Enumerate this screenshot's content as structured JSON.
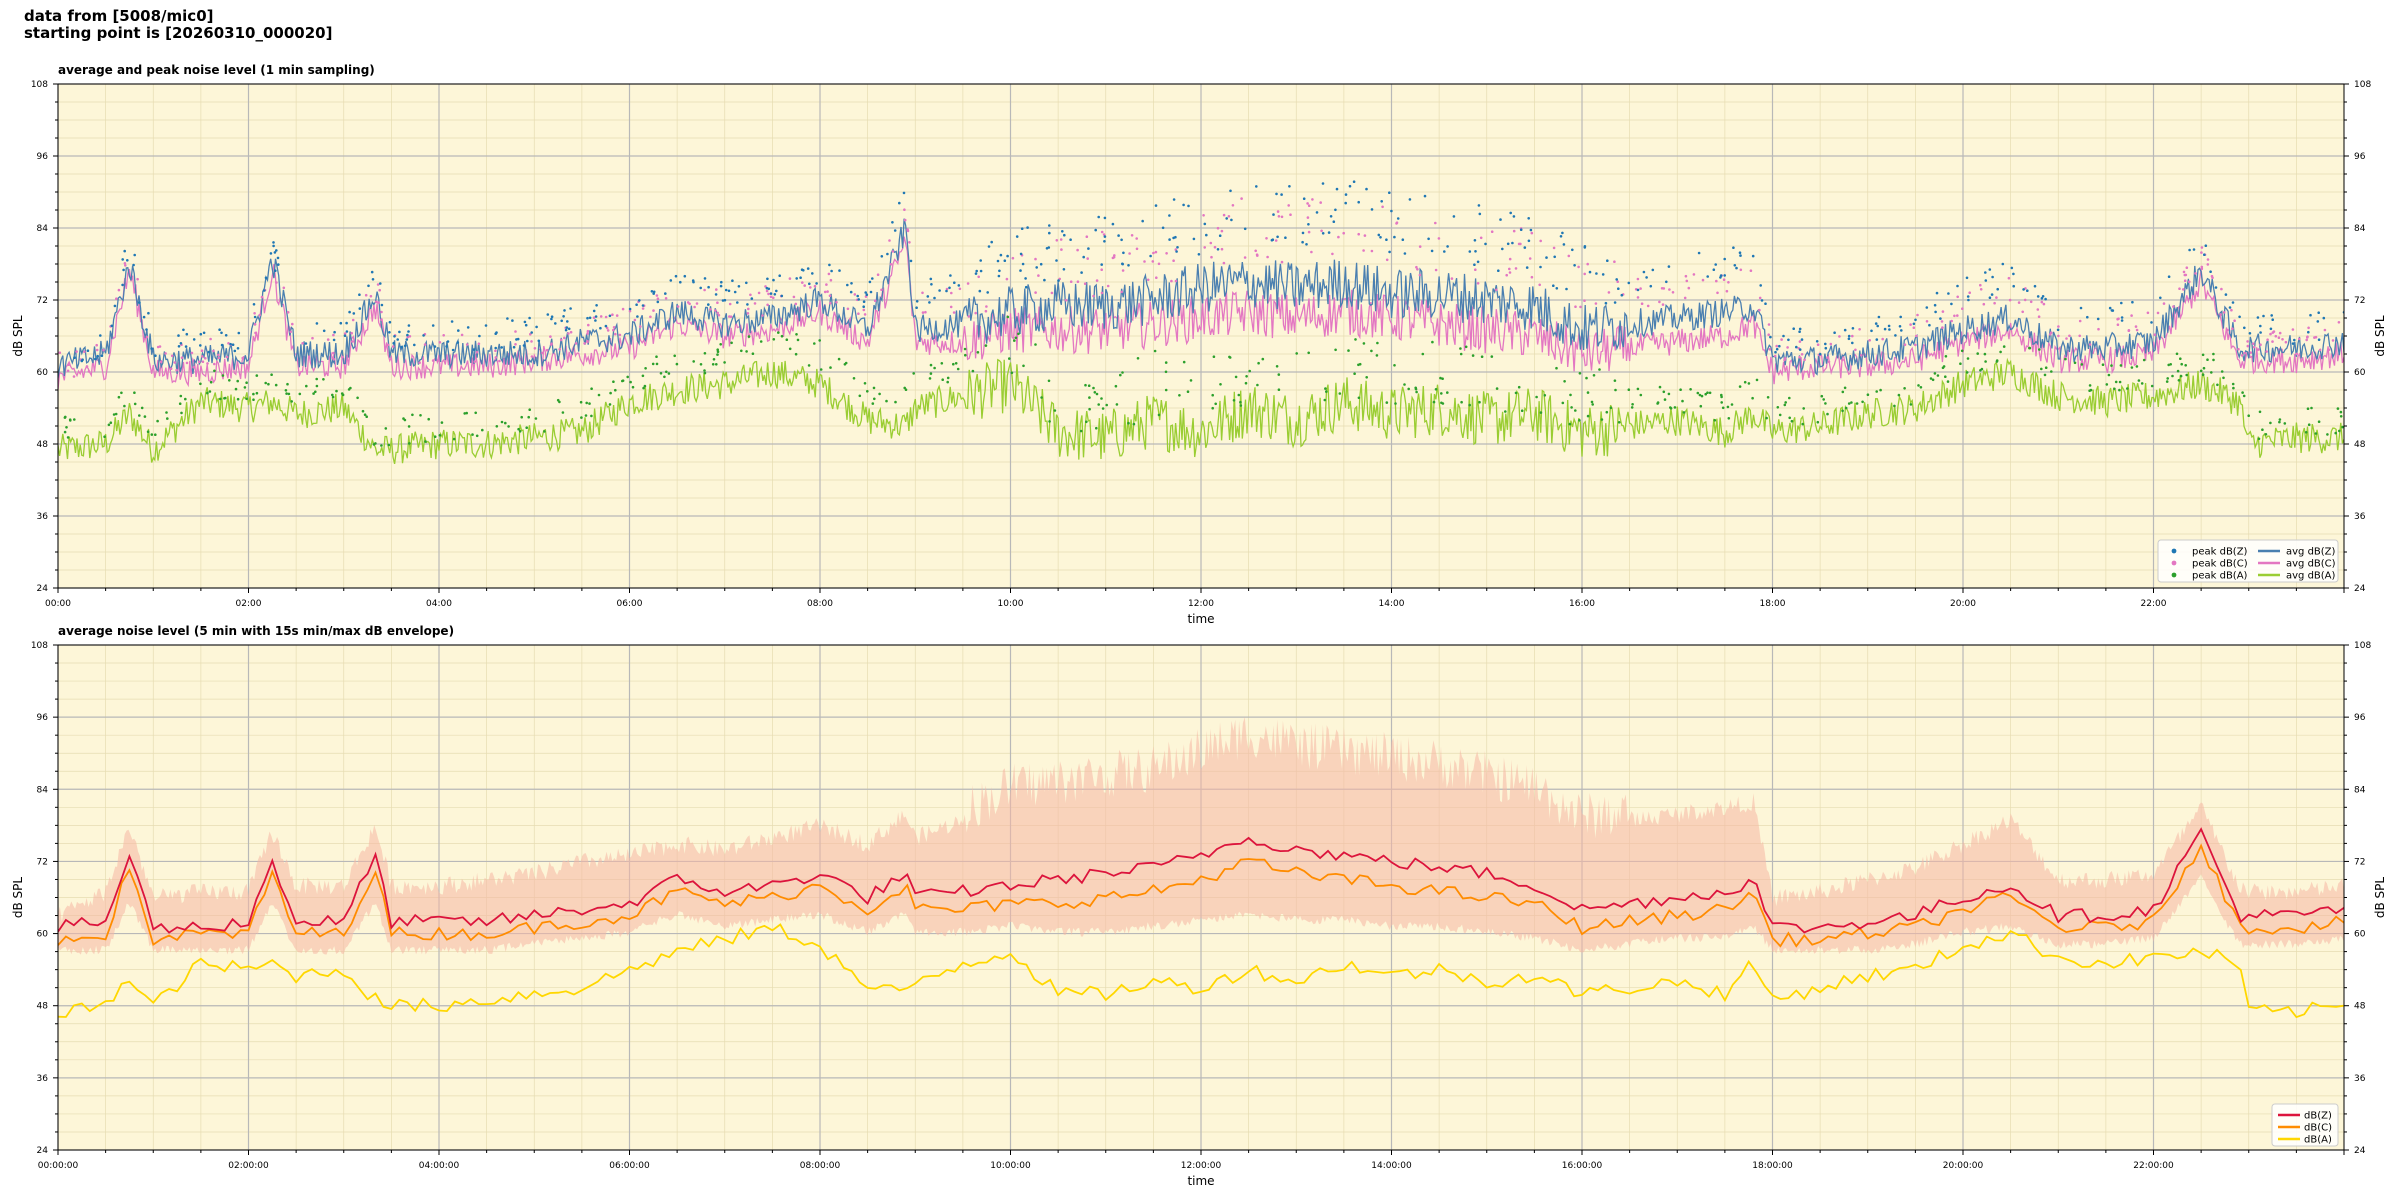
{
  "header": {
    "line1": "data from [5008/mic0]",
    "line2": "starting point is [20260310_000020]"
  },
  "colors": {
    "plot_bg": "#fdf6d8",
    "peak_z": "#1f77b4",
    "peak_c": "#e377c2",
    "peak_a": "#2ca02c",
    "avg_z": "#4a7fb0",
    "avg_c": "#e377c2",
    "avg_a": "#9acd32",
    "z": "#dc143c",
    "c": "#ff8c00",
    "a": "#ffd700",
    "envelope": "#f5b7a4"
  },
  "chart_data": [
    {
      "type": "scatter+line",
      "title": "average and peak noise level (1 min sampling)",
      "xlabel": "time",
      "ylabel": "dB SPL",
      "ylim": [
        24,
        108
      ],
      "xlim_hours": [
        0,
        24
      ],
      "yticks": [
        24,
        36,
        48,
        60,
        72,
        84,
        96,
        108
      ],
      "xtick_labels": [
        "00:00",
        "02:00",
        "04:00",
        "06:00",
        "08:00",
        "10:00",
        "12:00",
        "14:00",
        "16:00",
        "18:00",
        "20:00",
        "22:00"
      ],
      "grid": true,
      "legend_position": "bottom-right",
      "legend": [
        "peak dB(Z)",
        "peak dB(C)",
        "peak dB(A)",
        "avg dB(Z)",
        "avg dB(C)",
        "avg dB(A)"
      ],
      "x_hours": [
        0,
        0.5,
        0.75,
        1,
        1.5,
        2,
        2.25,
        2.5,
        3,
        3.33,
        3.5,
        4,
        4.5,
        5,
        5.5,
        6,
        6.5,
        7,
        7.5,
        8,
        8.5,
        8.9,
        9,
        9.5,
        10,
        10.5,
        11,
        11.5,
        12,
        12.5,
        13,
        13.5,
        14,
        14.5,
        15,
        15.5,
        16,
        16.5,
        17,
        17.5,
        17.8,
        18,
        18.5,
        19,
        19.5,
        20,
        20.5,
        21,
        21.5,
        22,
        22.5,
        22.9,
        23,
        23.5,
        24
      ],
      "series": [
        {
          "name": "avg dB(Z)",
          "values": [
            61,
            63,
            78,
            62,
            62,
            63,
            79,
            63,
            63,
            73,
            63,
            63,
            63,
            63,
            65,
            66,
            70,
            68,
            69,
            72,
            67,
            84,
            67,
            68,
            70,
            71,
            71,
            72,
            74,
            75,
            74,
            75,
            73,
            73,
            72,
            71,
            67,
            68,
            69,
            70,
            71,
            62,
            62,
            63,
            64,
            67,
            69,
            64,
            64,
            65,
            77,
            64,
            64,
            64,
            65
          ]
        },
        {
          "name": "avg dB(C)",
          "values": [
            59,
            61,
            77,
            60,
            60,
            61,
            77,
            61,
            61,
            71,
            61,
            61,
            61,
            62,
            63,
            64,
            68,
            66,
            67,
            70,
            65,
            82,
            65,
            65,
            67,
            67,
            67,
            68,
            69,
            70,
            69,
            70,
            69,
            68,
            67,
            66,
            63,
            64,
            65,
            66,
            68,
            60,
            61,
            61,
            62,
            65,
            67,
            62,
            62,
            63,
            75,
            62,
            62,
            62,
            63
          ]
        },
        {
          "name": "avg dB(A)",
          "values": [
            47,
            48,
            53,
            47,
            55,
            54,
            55,
            53,
            54,
            47,
            47,
            48,
            48,
            49,
            50,
            55,
            57,
            58,
            60,
            58,
            52,
            51,
            54,
            56,
            58,
            50,
            49,
            52,
            50,
            54,
            52,
            55,
            53,
            54,
            52,
            53,
            50,
            51,
            52,
            50,
            53,
            50,
            51,
            53,
            54,
            58,
            60,
            56,
            55,
            56,
            58,
            55,
            48,
            49,
            49
          ]
        },
        {
          "name": "peak dB(Z)",
          "values": [
            62,
            64,
            80,
            63,
            64,
            65,
            80,
            65,
            65,
            75,
            65,
            65,
            65,
            66,
            68,
            70,
            74,
            72,
            73,
            76,
            71,
            88,
            72,
            74,
            77,
            78,
            79,
            80,
            83,
            85,
            84,
            85,
            83,
            82,
            80,
            79,
            74,
            75,
            76,
            77,
            79,
            64,
            64,
            66,
            68,
            72,
            75,
            68,
            68,
            69,
            80,
            66,
            66,
            66,
            67
          ]
        },
        {
          "name": "peak dB(C)",
          "values": [
            60,
            62,
            78,
            61,
            62,
            63,
            78,
            63,
            63,
            73,
            63,
            63,
            63,
            64,
            66,
            68,
            72,
            70,
            71,
            74,
            69,
            86,
            70,
            71,
            74,
            75,
            76,
            77,
            80,
            82,
            81,
            82,
            80,
            79,
            77,
            76,
            71,
            72,
            73,
            74,
            76,
            62,
            62,
            64,
            66,
            70,
            73,
            66,
            66,
            67,
            78,
            64,
            64,
            64,
            65
          ]
        },
        {
          "name": "peak dB(A)",
          "values": [
            49,
            50,
            55,
            49,
            57,
            56,
            57,
            55,
            56,
            49,
            49,
            50,
            50,
            51,
            53,
            58,
            60,
            62,
            64,
            62,
            56,
            55,
            58,
            60,
            62,
            53,
            52,
            56,
            54,
            58,
            56,
            59,
            57,
            58,
            56,
            57,
            53,
            54,
            55,
            53,
            57,
            52,
            53,
            55,
            56,
            61,
            63,
            59,
            58,
            59,
            61,
            57,
            50,
            51,
            51
          ]
        }
      ]
    },
    {
      "type": "line+area",
      "title": "average noise level (5 min with 15s min/max dB envelope)",
      "xlabel": "time",
      "ylabel": "dB SPL",
      "ylim": [
        24,
        108
      ],
      "xlim_hours": [
        0,
        24
      ],
      "yticks": [
        24,
        36,
        48,
        60,
        72,
        84,
        96,
        108
      ],
      "xtick_labels": [
        "00:00:00",
        "02:00:00",
        "04:00:00",
        "06:00:00",
        "08:00:00",
        "10:00:00",
        "12:00:00",
        "14:00:00",
        "16:00:00",
        "18:00:00",
        "20:00:00",
        "22:00:00"
      ],
      "grid": true,
      "legend_position": "bottom-right",
      "legend": [
        "dB(Z)",
        "dB(C)",
        "dB(A)"
      ],
      "x_hours": [
        0,
        0.5,
        0.75,
        1,
        1.5,
        2,
        2.25,
        2.5,
        3,
        3.33,
        3.5,
        4,
        4.5,
        5,
        5.5,
        6,
        6.5,
        7,
        7.5,
        8,
        8.5,
        8.9,
        9,
        9.5,
        10,
        10.5,
        11,
        11.5,
        12,
        12.5,
        13,
        13.5,
        14,
        14.5,
        15,
        15.5,
        16,
        16.5,
        17,
        17.5,
        17.8,
        18,
        18.5,
        19,
        19.5,
        20,
        20.5,
        21,
        21.5,
        22,
        22.5,
        22.9,
        23,
        23.5,
        24
      ],
      "series": [
        {
          "name": "dB(Z)",
          "values": [
            61,
            62,
            73,
            61,
            61,
            62,
            72,
            62,
            62,
            73,
            62,
            62,
            62,
            63,
            64,
            65,
            69,
            67,
            68,
            70,
            66,
            70,
            66,
            67,
            68,
            69,
            70,
            71,
            73,
            76,
            74,
            73,
            72,
            71,
            70,
            68,
            64,
            65,
            66,
            67,
            69,
            61,
            61,
            62,
            63,
            66,
            68,
            63,
            63,
            64,
            77,
            63,
            63,
            63,
            64
          ]
        },
        {
          "name": "dB(C)",
          "values": [
            59,
            60,
            71,
            59,
            60,
            60,
            70,
            60,
            60,
            71,
            60,
            60,
            60,
            61,
            62,
            63,
            67,
            65,
            66,
            68,
            64,
            68,
            64,
            64,
            65,
            65,
            66,
            67,
            69,
            72,
            70,
            69,
            68,
            67,
            66,
            65,
            61,
            62,
            63,
            64,
            67,
            59,
            59,
            60,
            61,
            64,
            66,
            61,
            61,
            62,
            75,
            61,
            61,
            61,
            62
          ]
        },
        {
          "name": "dB(A)",
          "values": [
            46,
            49,
            52,
            48,
            55,
            54,
            55,
            53,
            54,
            49,
            48,
            48,
            49,
            50,
            51,
            54,
            57,
            59,
            61,
            58,
            51,
            50,
            52,
            55,
            57,
            50,
            50,
            52,
            51,
            54,
            52,
            55,
            53,
            54,
            52,
            53,
            50,
            51,
            52,
            50,
            55,
            49,
            51,
            53,
            54,
            58,
            60,
            56,
            55,
            56,
            57,
            55,
            47,
            47,
            48
          ]
        },
        {
          "name": "envelope max",
          "values": [
            62,
            66,
            77,
            65,
            66,
            66,
            76,
            67,
            67,
            77,
            67,
            67,
            68,
            69,
            71,
            72,
            74,
            73,
            75,
            77,
            74,
            79,
            75,
            78,
            82,
            83,
            84,
            85,
            88,
            91,
            89,
            88,
            87,
            86,
            84,
            82,
            77,
            78,
            79,
            80,
            81,
            65,
            66,
            68,
            70,
            74,
            78,
            68,
            68,
            69,
            80,
            67,
            66,
            66,
            67
          ]
        },
        {
          "name": "envelope min",
          "values": [
            58,
            58,
            66,
            58,
            58,
            58,
            66,
            58,
            58,
            66,
            58,
            58,
            58,
            59,
            60,
            61,
            64,
            62,
            63,
            64,
            61,
            64,
            61,
            61,
            62,
            61,
            61,
            62,
            63,
            64,
            63,
            63,
            62,
            62,
            61,
            60,
            58,
            59,
            60,
            60,
            62,
            58,
            58,
            58,
            59,
            61,
            62,
            59,
            59,
            60,
            70,
            59,
            59,
            59,
            60
          ]
        }
      ]
    }
  ]
}
